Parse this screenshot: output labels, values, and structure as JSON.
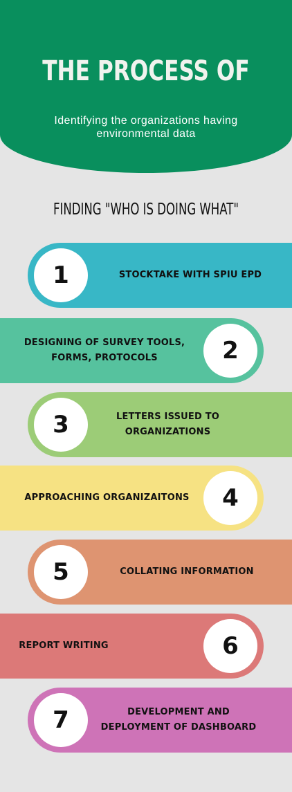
{
  "header": {
    "title": "THE PROCESS OF",
    "subtitle": "Identifying the organizations having environmental data"
  },
  "section_title": "FINDING \"WHO IS DOING WHAT\"",
  "colors": {
    "header_green": "#098f5d",
    "background": "#e5e5e5",
    "step1": "#38b7c6",
    "step2": "#56c29e",
    "step3": "#9ccc77",
    "step4": "#f6e283",
    "step5": "#de9471",
    "step6": "#dc7978",
    "step7": "#ce73b7"
  },
  "steps": [
    {
      "number": "1",
      "text": "STOCKTAKE WITH SPIU EPD"
    },
    {
      "number": "2",
      "text": "DESIGNING OF SURVEY TOOLS, FORMS, PROTOCOLS"
    },
    {
      "number": "3",
      "text": "LETTERS ISSUED TO ORGANIZATIONS"
    },
    {
      "number": "4",
      "text": "APPROACHING ORGANIZAITONS"
    },
    {
      "number": "5",
      "text": "COLLATING INFORMATION"
    },
    {
      "number": "6",
      "text": "REPORT WRITING"
    },
    {
      "number": "7",
      "text": "DEVELOPMENT AND DEPLOYMENT OF DASHBOARD"
    }
  ]
}
